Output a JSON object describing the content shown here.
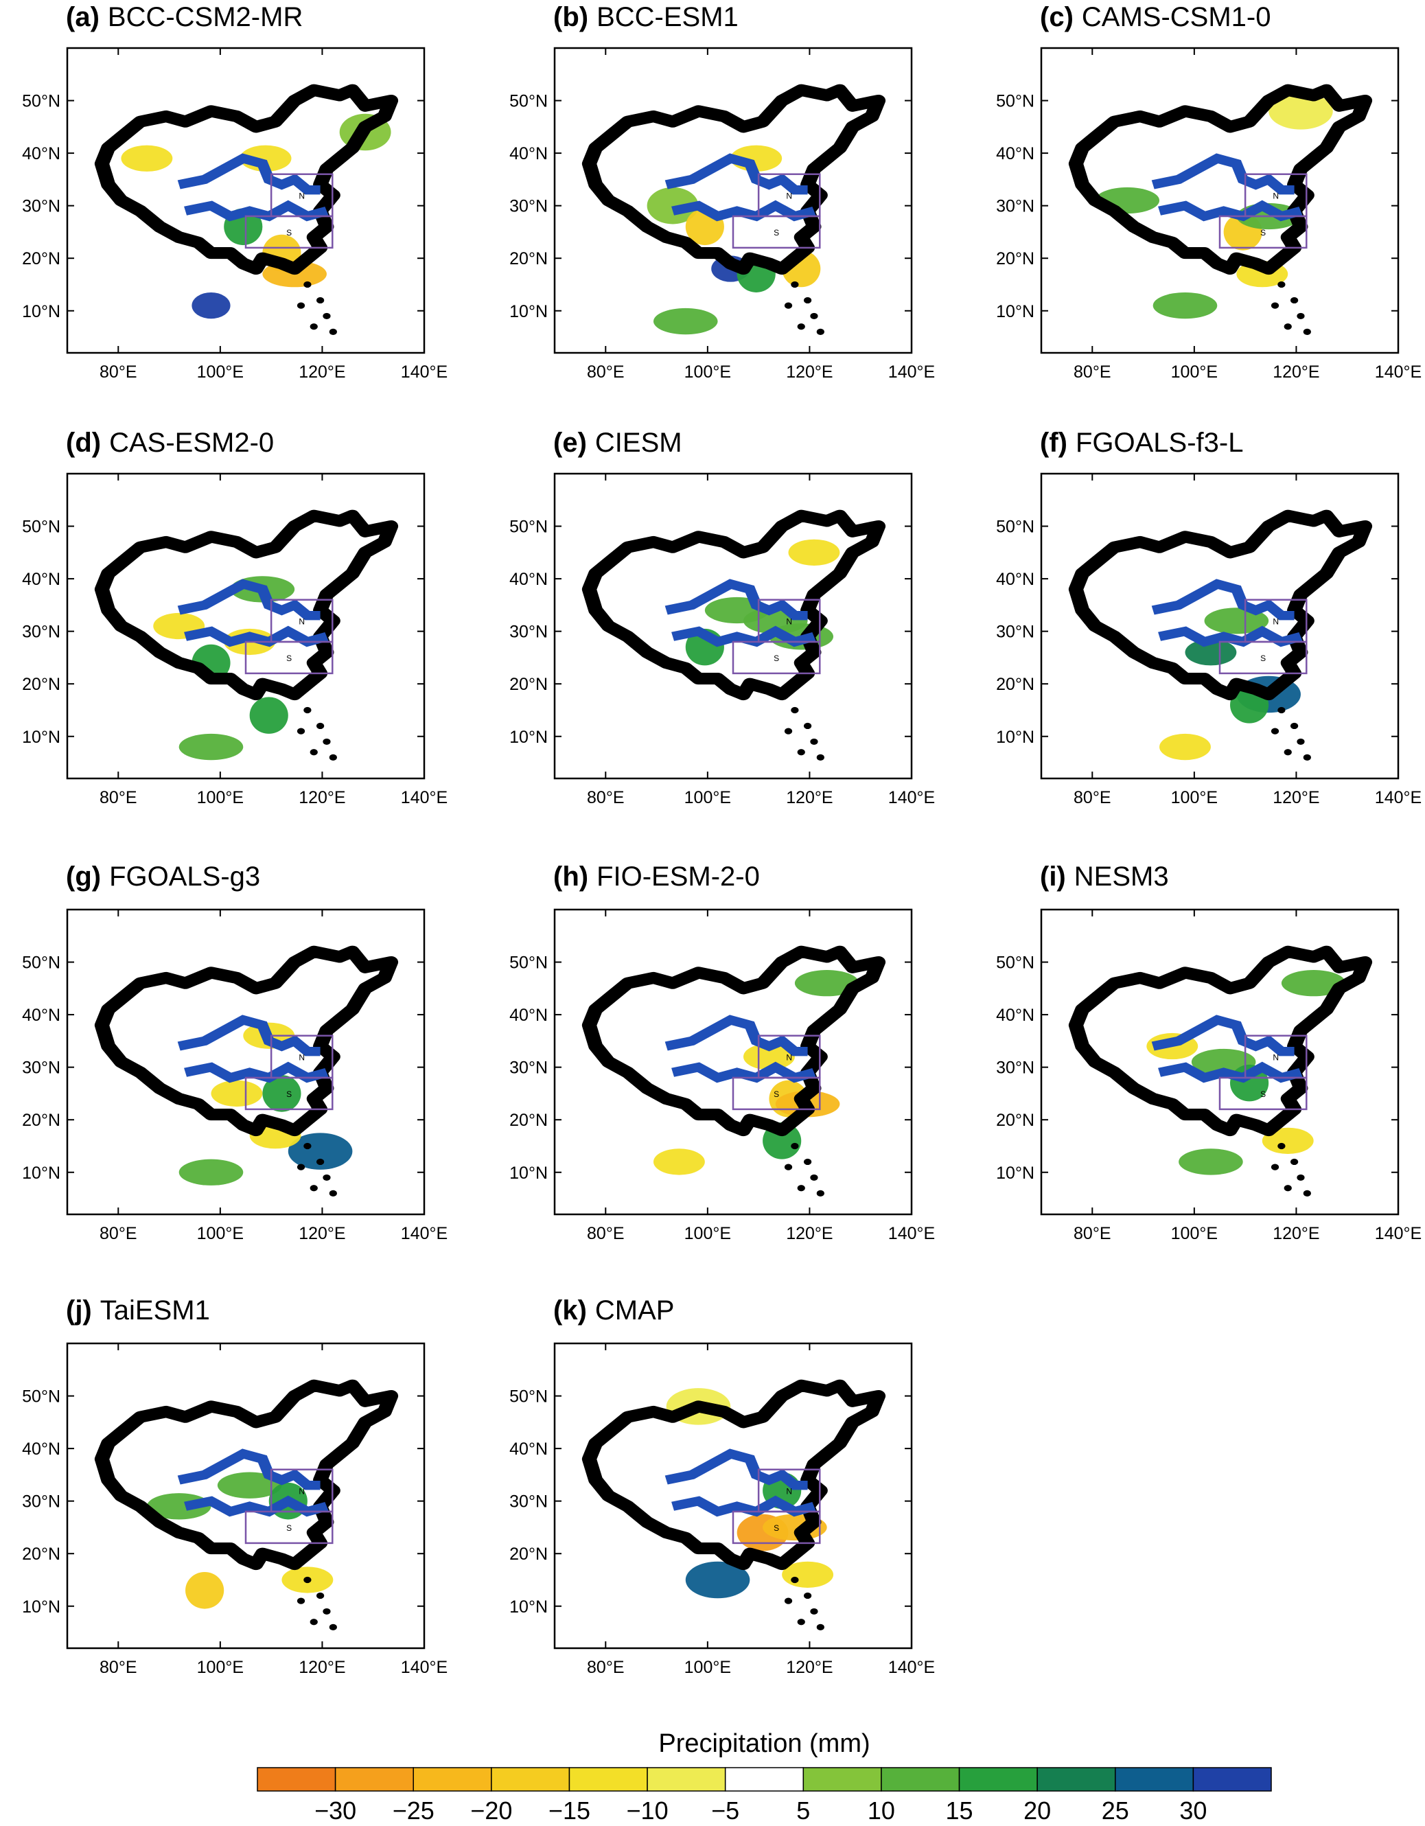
{
  "panels": [
    {
      "label": "(a)",
      "model": "BCC-CSM2-MR"
    },
    {
      "label": "(b)",
      "model": "BCC-ESM1"
    },
    {
      "label": "(c)",
      "model": "CAMS-CSM1-0"
    },
    {
      "label": "(d)",
      "model": "CAS-ESM2-0"
    },
    {
      "label": "(e)",
      "model": "CIESM"
    },
    {
      "label": "(f)",
      "model": "FGOALS-f3-L"
    },
    {
      "label": "(g)",
      "model": "FGOALS-g3"
    },
    {
      "label": "(h)",
      "model": "FIO-ESM-2-0"
    },
    {
      "label": "(i)",
      "model": "NESM3"
    },
    {
      "label": "(j)",
      "model": "TaiESM1"
    },
    {
      "label": "(k)",
      "model": "CMAP"
    }
  ],
  "map": {
    "lon_range": [
      70,
      140
    ],
    "lat_range": [
      2,
      60
    ],
    "x_ticks": [
      "80°E",
      "100°E",
      "120°E",
      "140°E"
    ],
    "x_tick_values": [
      80,
      100,
      120,
      140
    ],
    "y_ticks": [
      "50°N",
      "40°N",
      "30°N",
      "20°N",
      "10°N"
    ],
    "y_tick_values": [
      50,
      40,
      30,
      20,
      10
    ],
    "region_labels": [
      "N",
      "S"
    ],
    "region_north": {
      "lon": [
        110,
        122
      ],
      "lat": [
        28,
        36
      ]
    },
    "region_south": {
      "lon": [
        105,
        122
      ],
      "lat": [
        22,
        28
      ]
    }
  },
  "colorbar": {
    "title": "Precipitation (mm)",
    "ticks": [
      "−30",
      "−25",
      "−20",
      "−15",
      "−10",
      "−5",
      "5",
      "10",
      "15",
      "20",
      "25",
      "30"
    ],
    "colors": [
      "#ef7d1a",
      "#f5a01c",
      "#f7b81c",
      "#f5cc20",
      "#f3df28",
      "#eeeb52",
      "#ffffff",
      "#84c43a",
      "#56b13b",
      "#27a03d",
      "#157f50",
      "#0e5e8e",
      "#1f41a6"
    ]
  },
  "colors": {
    "coast": "#000000",
    "river": "#1f4fb8",
    "region_box": "#7a55a8"
  }
}
